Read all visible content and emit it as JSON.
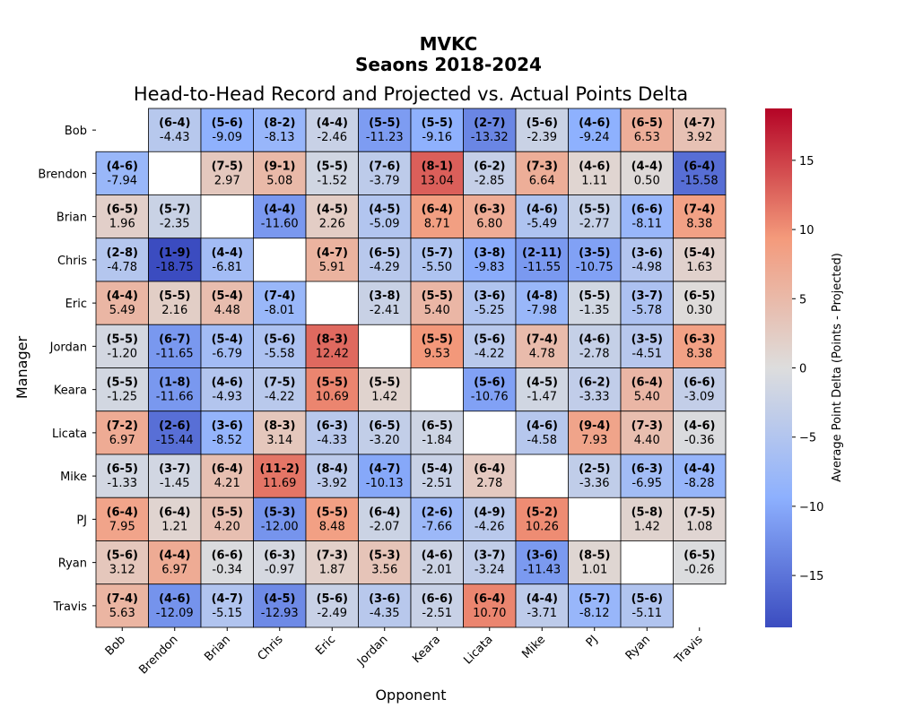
{
  "suptitle_line1": "MVKC",
  "suptitle_line2": "Seaons 2018-2024",
  "chart_data": {
    "type": "heatmap",
    "title": "Head-to-Head Record and Projected vs. Actual Points Delta",
    "xlabel": "Opponent",
    "ylabel": "Manager",
    "colorbar_label": "Average Point Delta (Points - Projected)",
    "colorbar_ticks": [
      -15,
      -10,
      -5,
      0,
      5,
      10,
      15
    ],
    "value_range": [
      -18.75,
      18.75
    ],
    "colormap": "coolwarm",
    "colormap_low": "#3b4cc0",
    "colormap_mid": "#dddddd",
    "colormap_high": "#b40426",
    "managers": [
      "Bob",
      "Brendon",
      "Brian",
      "Chris",
      "Eric",
      "Jordan",
      "Keara",
      "Licata",
      "Mike",
      "PJ",
      "Ryan",
      "Travis"
    ],
    "opponents": [
      "Bob",
      "Brendon",
      "Brian",
      "Chris",
      "Eric",
      "Jordan",
      "Keara",
      "Licata",
      "Mike",
      "PJ",
      "Ryan",
      "Travis"
    ],
    "records": [
      [
        null,
        "(6-4)",
        "(5-6)",
        "(8-2)",
        "(4-4)",
        "(5-5)",
        "(5-5)",
        "(2-7)",
        "(5-6)",
        "(4-6)",
        "(6-5)",
        "(4-7)"
      ],
      [
        "(4-6)",
        null,
        "(7-5)",
        "(9-1)",
        "(5-5)",
        "(7-6)",
        "(8-1)",
        "(6-2)",
        "(7-3)",
        "(4-6)",
        "(4-4)",
        "(6-4)"
      ],
      [
        "(6-5)",
        "(5-7)",
        null,
        "(4-4)",
        "(4-5)",
        "(4-5)",
        "(6-4)",
        "(6-3)",
        "(4-6)",
        "(5-5)",
        "(6-6)",
        "(7-4)"
      ],
      [
        "(2-8)",
        "(1-9)",
        "(4-4)",
        null,
        "(4-7)",
        "(6-5)",
        "(5-7)",
        "(3-8)",
        "(2-11)",
        "(3-5)",
        "(3-6)",
        "(5-4)"
      ],
      [
        "(4-4)",
        "(5-5)",
        "(5-4)",
        "(7-4)",
        null,
        "(3-8)",
        "(5-5)",
        "(3-6)",
        "(4-8)",
        "(5-5)",
        "(3-7)",
        "(6-5)"
      ],
      [
        "(5-5)",
        "(6-7)",
        "(5-4)",
        "(5-6)",
        "(8-3)",
        null,
        "(5-5)",
        "(5-6)",
        "(7-4)",
        "(4-6)",
        "(3-5)",
        "(6-3)"
      ],
      [
        "(5-5)",
        "(1-8)",
        "(4-6)",
        "(7-5)",
        "(5-5)",
        "(5-5)",
        null,
        "(5-6)",
        "(4-5)",
        "(6-2)",
        "(6-4)",
        "(6-6)"
      ],
      [
        "(7-2)",
        "(2-6)",
        "(3-6)",
        "(8-3)",
        "(6-3)",
        "(6-5)",
        "(6-5)",
        null,
        "(4-6)",
        "(9-4)",
        "(7-3)",
        "(4-6)"
      ],
      [
        "(6-5)",
        "(3-7)",
        "(6-4)",
        "(11-2)",
        "(8-4)",
        "(4-7)",
        "(5-4)",
        "(6-4)",
        null,
        "(2-5)",
        "(6-3)",
        "(4-4)"
      ],
      [
        "(6-4)",
        "(6-4)",
        "(5-5)",
        "(5-3)",
        "(5-5)",
        "(6-4)",
        "(2-6)",
        "(4-9)",
        "(5-2)",
        null,
        "(5-8)",
        "(7-5)"
      ],
      [
        "(5-6)",
        "(4-4)",
        "(6-6)",
        "(6-3)",
        "(7-3)",
        "(5-3)",
        "(4-6)",
        "(3-7)",
        "(3-6)",
        "(8-5)",
        null,
        "(6-5)"
      ],
      [
        "(7-4)",
        "(4-6)",
        "(4-7)",
        "(4-5)",
        "(5-6)",
        "(3-6)",
        "(6-6)",
        "(6-4)",
        "(4-4)",
        "(5-7)",
        "(5-6)",
        null
      ]
    ],
    "deltas": [
      [
        null,
        -4.43,
        -9.09,
        -8.13,
        -2.46,
        -11.23,
        -9.16,
        -13.32,
        -2.39,
        -9.24,
        6.53,
        3.92
      ],
      [
        -7.94,
        null,
        2.97,
        5.08,
        -1.52,
        -3.79,
        13.04,
        -2.85,
        6.64,
        1.11,
        0.5,
        -15.58
      ],
      [
        1.96,
        -2.35,
        null,
        -11.6,
        2.26,
        -5.09,
        8.71,
        6.8,
        -5.49,
        -2.77,
        -8.11,
        8.38
      ],
      [
        -4.78,
        -18.75,
        -6.81,
        null,
        5.91,
        -4.29,
        -5.5,
        -9.83,
        -11.55,
        -10.75,
        -4.98,
        1.63
      ],
      [
        5.49,
        2.16,
        4.48,
        -8.01,
        null,
        -2.41,
        5.4,
        -5.25,
        -7.98,
        -1.35,
        -5.78,
        0.3
      ],
      [
        -1.2,
        -11.65,
        -6.79,
        -5.58,
        12.42,
        null,
        9.53,
        -4.22,
        4.78,
        -2.78,
        -4.51,
        8.38
      ],
      [
        -1.25,
        -11.66,
        -4.93,
        -4.22,
        10.69,
        1.42,
        null,
        -10.76,
        -1.47,
        -3.33,
        5.4,
        -3.09
      ],
      [
        6.97,
        -15.44,
        -8.52,
        3.14,
        -4.33,
        -3.2,
        -1.84,
        null,
        -4.58,
        7.93,
        4.4,
        -0.36
      ],
      [
        -1.33,
        -1.45,
        4.21,
        11.69,
        -3.92,
        -10.13,
        -2.51,
        2.78,
        null,
        -3.36,
        -6.95,
        -8.28
      ],
      [
        7.95,
        1.21,
        4.2,
        -12.0,
        8.48,
        -2.07,
        -7.66,
        -4.26,
        10.26,
        null,
        1.42,
        1.08
      ],
      [
        3.12,
        6.97,
        -0.34,
        -0.97,
        1.87,
        3.56,
        -2.01,
        -3.24,
        -11.43,
        1.01,
        null,
        -0.26
      ],
      [
        5.63,
        -12.09,
        -5.15,
        -12.93,
        -2.49,
        -4.35,
        -2.51,
        10.7,
        -3.71,
        -8.12,
        -5.11,
        null
      ]
    ]
  }
}
